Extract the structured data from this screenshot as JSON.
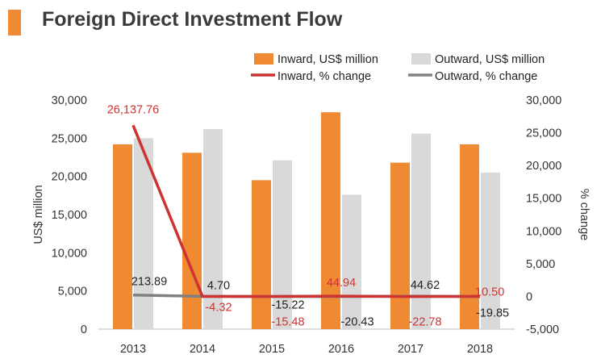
{
  "title": "Foreign Direct Investment Flow",
  "colors": {
    "accent": "#f08a32",
    "inward_bar": "#f08a32",
    "outward_bar": "#d9d9d9",
    "inward_line": "#cc3333",
    "outward_line": "#808080",
    "axis": "#333333"
  },
  "chart_data": {
    "type": "bar",
    "categories": [
      "2013",
      "2014",
      "2015",
      "2016",
      "2017",
      "2018"
    ],
    "series": [
      {
        "name": "Inward, US$ million",
        "kind": "bar",
        "axis": "left",
        "values": [
          24200,
          23100,
          19500,
          28400,
          21800,
          24200
        ]
      },
      {
        "name": "Outward, US$ million",
        "kind": "bar",
        "axis": "left",
        "values": [
          25000,
          26200,
          22100,
          17600,
          25600,
          20500
        ]
      },
      {
        "name": "Inward, % change",
        "kind": "line",
        "axis": "right",
        "values": [
          26137.76,
          -4.32,
          -15.48,
          44.94,
          -22.78,
          10.5
        ],
        "labels": [
          "26,137.76",
          "-4.32",
          "-15.48",
          "44.94",
          "-22.78",
          "10.50"
        ]
      },
      {
        "name": "Outward, % change",
        "kind": "line",
        "axis": "right",
        "values": [
          213.89,
          4.7,
          -15.22,
          -20.43,
          44.62,
          -19.85
        ],
        "labels": [
          "213.89",
          "4.70",
          "-15.22",
          "-20.43",
          "44.62",
          "-19.85"
        ]
      }
    ],
    "ylabel": "US$ million",
    "y2label": "% change",
    "ylim": [
      0,
      30000
    ],
    "y2lim": [
      -5000,
      30000
    ],
    "yticks": [
      "30,000",
      "25,000",
      "20,000",
      "15,000",
      "10,000",
      "5,000",
      "0"
    ],
    "y2ticks": [
      "30,000",
      "25,000",
      "20,000",
      "15,000",
      "10,000",
      "5,000",
      "0",
      "-5,000"
    ],
    "grid": false,
    "legend_position": "top"
  }
}
